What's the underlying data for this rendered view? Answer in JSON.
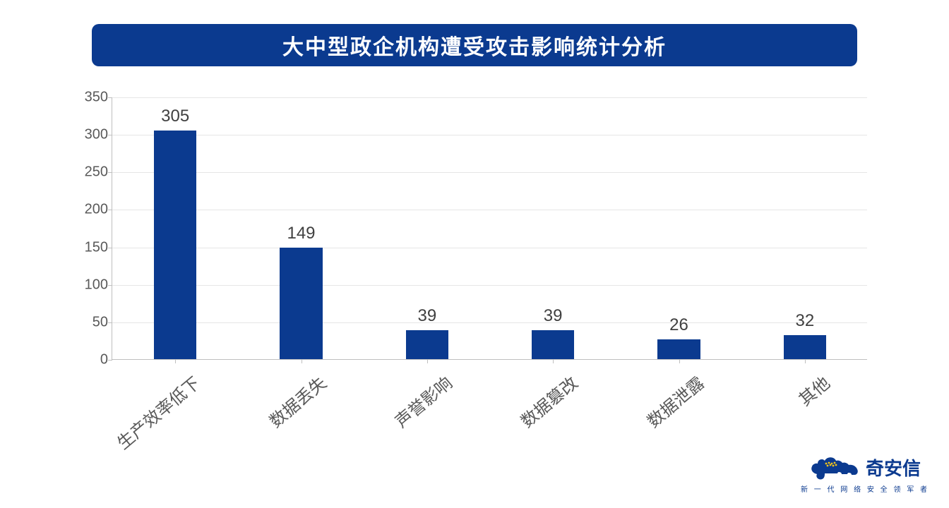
{
  "title": {
    "text": "大中型政企机构遭受攻击影响统计分析",
    "bg_color": "#0b3a8f",
    "text_color": "#ffffff",
    "fontsize": 30,
    "radius": 10
  },
  "chart": {
    "type": "bar",
    "categories": [
      "生产效率低下",
      "数据丢失",
      "声誉影响",
      "数据篡改",
      "数据泄露",
      "其他"
    ],
    "values": [
      305,
      149,
      39,
      39,
      26,
      32
    ],
    "bar_color": "#0b3a8f",
    "bar_width_ratio": 0.34,
    "ylim": [
      0,
      350
    ],
    "ytick_step": 50,
    "yticks": [
      0,
      50,
      100,
      150,
      200,
      250,
      300,
      350
    ],
    "gridline_color": "#e6e6e6",
    "axis_color": "#bfbfbf",
    "y_label_fontsize": 20,
    "x_label_fontsize": 24,
    "value_label_fontsize": 24,
    "value_label_color": "#404040",
    "tick_label_color": "#595959",
    "x_label_rotation_deg": -40,
    "background_color": "#ffffff"
  },
  "logo": {
    "name": "奇安信",
    "tagline": "新 一 代 网 络 安 全 领 军 者",
    "name_fontsize": 26,
    "tagline_fontsize": 10,
    "color": "#0b3a8f",
    "accent_color": "#f5c518"
  }
}
